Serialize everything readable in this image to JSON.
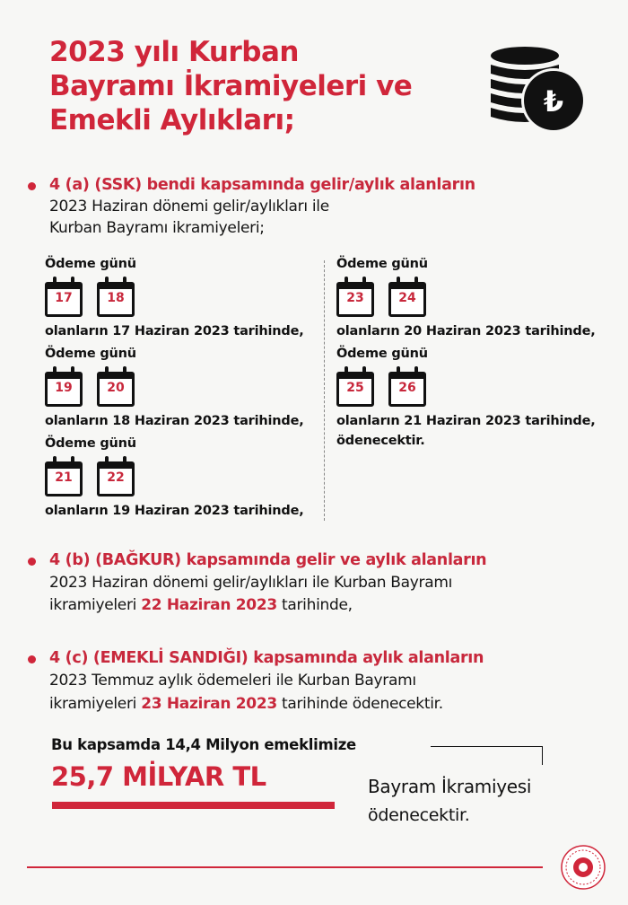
{
  "title": [
    "2023 yılı Kurban",
    "Bayramı İkramiyeleri ve",
    "Emekli Aylıkları;"
  ],
  "section_a": {
    "heading": "4 (a) (SSK) bendi kapsamında gelir/aylık alanların",
    "lines": [
      "2023 Haziran dönemi gelir/aylıkları ile",
      "Kurban Bayramı ikramiyeleri;"
    ]
  },
  "schedule": {
    "label": "Ödeme günü",
    "left": [
      {
        "days": [
          "17",
          "18"
        ],
        "text": "olanların 17 Haziran 2023 tarihinde,"
      },
      {
        "days": [
          "19",
          "20"
        ],
        "text": "olanların 18 Haziran 2023 tarihinde,"
      },
      {
        "days": [
          "21",
          "22"
        ],
        "text": "olanların 19 Haziran 2023 tarihinde,"
      }
    ],
    "right": [
      {
        "days": [
          "23",
          "24"
        ],
        "text": "olanların 20 Haziran 2023 tarihinde,"
      },
      {
        "days": [
          "25",
          "26"
        ],
        "text": "olanların 21 Haziran 2023 tarihinde,"
      }
    ],
    "closing": "ödenecektir."
  },
  "section_b": {
    "heading": "4 (b) (BAĞKUR) kapsamında gelir ve aylık alanların",
    "line1": "2023 Haziran dönemi gelir/aylıkları ile Kurban Bayramı",
    "line2_pre": "ikramiyeleri ",
    "line2_date": "22 Haziran 2023",
    "line2_post": " tarihinde,"
  },
  "section_c": {
    "heading": "4 (c) (EMEKLİ SANDIĞI) kapsamında aylık alanların",
    "line1": "2023 Temmuz aylık ödemeleri ile Kurban Bayramı",
    "line2_pre": "ikramiyeleri ",
    "line2_date": "23 Haziran 2023",
    "line2_post": " tarihinde ödenecektir."
  },
  "summary": {
    "intro": "Bu kapsamda 14,4 Milyon emeklimize",
    "amount": "25,7 MİLYAR TL",
    "note1": "Bayram İkramiyesi",
    "note2": "ödenecektir."
  },
  "icons": {
    "header": "coin-stack-lira-icon",
    "footer": "ministry-emblem"
  },
  "colors": {
    "accent": "#d0263a",
    "text": "#111111",
    "background": "#f7f7f5"
  }
}
